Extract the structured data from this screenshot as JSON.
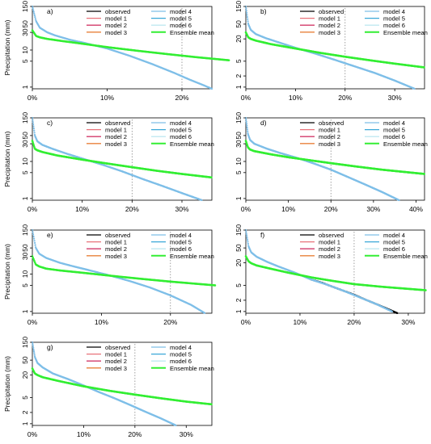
{
  "figure": {
    "legend_labels": [
      "observed",
      "model 1",
      "model 2",
      "model 3",
      "model 4",
      "model 5",
      "model 6",
      "Ensemble mean"
    ],
    "legend_colors": [
      "#000000",
      "#e8727a",
      "#d23a6a",
      "#e8803a",
      "#7fbfe8",
      "#3aa8d8",
      "#bfe8f0",
      "#33ee33"
    ]
  },
  "chart_data": [
    {
      "type": "line",
      "panel_label": "a)",
      "ylabel": "Precipitation (mm)",
      "xlabel": "",
      "x_unit": "% of days",
      "y_scale": "log",
      "xlim": [
        0,
        24
      ],
      "ylim": [
        0.9,
        150
      ],
      "x_ticks": [
        0,
        10,
        20
      ],
      "x_tick_labels": [
        "0%",
        "10%",
        "20%"
      ],
      "y_ticks": [
        1,
        5,
        10,
        30,
        50,
        150
      ],
      "y_tick_labels": [
        "1",
        "5",
        "10",
        "30",
        "50",
        "150"
      ],
      "threshold_x": 20,
      "legend_position": "top-right",
      "grid": false,
      "series": [
        {
          "name": "observed",
          "color": "#000000",
          "x": [],
          "y": []
        },
        {
          "name": "model 4",
          "color": "#7fbfe8",
          "x": [
            0,
            0.5,
            1,
            2,
            3,
            5,
            7,
            10,
            13,
            16,
            19,
            21,
            23,
            24
          ],
          "y": [
            150,
            60,
            40,
            30,
            25,
            19,
            15.5,
            11,
            7,
            4.2,
            2.4,
            1.6,
            1.1,
            0.9
          ]
        },
        {
          "name": "Ensemble mean",
          "color": "#33ee33",
          "x": [
            0,
            0.5,
            1,
            2,
            4,
            6,
            10,
            14,
            18,
            22,
            26.3
          ],
          "y": [
            34,
            24,
            22,
            20,
            17.5,
            15.5,
            12,
            9.6,
            7.8,
            6.4,
            5.3
          ]
        }
      ]
    },
    {
      "type": "line",
      "panel_label": "b)",
      "ylabel": "",
      "xlabel": "",
      "x_unit": "% of days",
      "y_scale": "log",
      "xlim": [
        0,
        36
      ],
      "ylim": [
        0.9,
        150
      ],
      "x_ticks": [
        0,
        10,
        20,
        30
      ],
      "x_tick_labels": [
        "0%",
        "10%",
        "20%",
        "30%"
      ],
      "y_ticks": [
        1,
        2,
        5,
        20,
        50,
        150
      ],
      "y_tick_labels": [
        "1",
        "2",
        "5",
        "20",
        "50",
        "150"
      ],
      "threshold_x": 20,
      "legend_position": "top-right",
      "grid": false,
      "series": [
        {
          "name": "observed",
          "color": "#000000",
          "x": [],
          "y": []
        },
        {
          "name": "model 4",
          "color": "#7fbfe8",
          "x": [
            0,
            0.5,
            1,
            2,
            4,
            7,
            10,
            14,
            18,
            22,
            26,
            30,
            34
          ],
          "y": [
            150,
            50,
            35,
            27,
            21,
            15.5,
            11.5,
            8,
            5.4,
            3.6,
            2.4,
            1.5,
            0.9
          ]
        },
        {
          "name": "Ensemble mean",
          "color": "#33ee33",
          "x": [
            0,
            0.5,
            1,
            2,
            5,
            10,
            15,
            20,
            25,
            30,
            36
          ],
          "y": [
            30,
            22,
            20,
            18,
            14.5,
            11,
            8.4,
            6.6,
            5.3,
            4.3,
            3.4
          ]
        }
      ]
    },
    {
      "type": "line",
      "panel_label": "c)",
      "ylabel": "Precipitation (mm)",
      "xlabel": "",
      "x_unit": "% of days",
      "y_scale": "log",
      "xlim": [
        0,
        36
      ],
      "ylim": [
        0.9,
        150
      ],
      "x_ticks": [
        0,
        10,
        20,
        30
      ],
      "x_tick_labels": [
        "0%",
        "10%",
        "20%",
        "30%"
      ],
      "y_ticks": [
        1,
        5,
        10,
        30,
        50,
        150
      ],
      "y_tick_labels": [
        "1",
        "5",
        "10",
        "30",
        "50",
        "150"
      ],
      "threshold_x": 20,
      "legend_position": "top-right",
      "grid": false,
      "series": [
        {
          "name": "observed",
          "color": "#000000",
          "x": [],
          "y": []
        },
        {
          "name": "model 4",
          "color": "#7fbfe8",
          "x": [
            0,
            0.5,
            1,
            2,
            4,
            7,
            10,
            14,
            18,
            22,
            26,
            30,
            34
          ],
          "y": [
            150,
            50,
            35,
            28,
            22,
            16,
            12,
            8.2,
            5.4,
            3.4,
            2.2,
            1.4,
            0.9
          ]
        },
        {
          "name": "Ensemble mean",
          "color": "#33ee33",
          "x": [
            0,
            0.5,
            1,
            2,
            5,
            10,
            15,
            20,
            25,
            30,
            36
          ],
          "y": [
            36,
            22,
            20,
            18,
            14.5,
            11.2,
            8.8,
            7,
            5.6,
            4.6,
            3.7
          ]
        }
      ]
    },
    {
      "type": "line",
      "panel_label": "d)",
      "ylabel": "",
      "xlabel": "",
      "x_unit": "% of days",
      "y_scale": "log",
      "xlim": [
        0,
        42
      ],
      "ylim": [
        0.9,
        150
      ],
      "x_ticks": [
        0,
        10,
        20,
        30,
        40
      ],
      "x_tick_labels": [
        "0%",
        "10%",
        "20%",
        "30%",
        "40%"
      ],
      "y_ticks": [
        1,
        5,
        10,
        30,
        50,
        150
      ],
      "y_tick_labels": [
        "1",
        "5",
        "10",
        "30",
        "50",
        "150"
      ],
      "threshold_x": 20,
      "legend_position": "top-right",
      "grid": false,
      "series": [
        {
          "name": "observed",
          "color": "#000000",
          "x": [],
          "y": []
        },
        {
          "name": "model 4",
          "color": "#7fbfe8",
          "x": [
            0,
            0.5,
            1,
            2,
            5,
            8,
            12,
            16,
            20,
            24,
            28,
            32,
            36
          ],
          "y": [
            150,
            55,
            38,
            30,
            22,
            17,
            12.5,
            8.8,
            6,
            3.8,
            2.4,
            1.5,
            0.9
          ]
        },
        {
          "name": "Ensemble mean",
          "color": "#33ee33",
          "x": [
            0,
            0.5,
            1,
            2,
            6,
            10,
            15,
            20,
            26,
            32,
            42
          ],
          "y": [
            36,
            24,
            21,
            19,
            15.5,
            13,
            10.8,
            9,
            7.3,
            6,
            4.6
          ]
        }
      ]
    },
    {
      "type": "line",
      "panel_label": "e)",
      "ylabel": "Precipitation (mm)",
      "xlabel": "",
      "x_unit": "% of days",
      "y_scale": "log",
      "xlim": [
        0,
        26
      ],
      "ylim": [
        0.9,
        150
      ],
      "x_ticks": [
        0,
        10,
        20
      ],
      "x_tick_labels": [
        "0%",
        "10%",
        "20%"
      ],
      "y_ticks": [
        1,
        5,
        10,
        30,
        50,
        150
      ],
      "y_tick_labels": [
        "1",
        "5",
        "10",
        "30",
        "50",
        "150"
      ],
      "threshold_x": 20,
      "legend_position": "top-right",
      "grid": false,
      "series": [
        {
          "name": "observed",
          "color": "#000000",
          "x": [],
          "y": []
        },
        {
          "name": "model 4",
          "color": "#7fbfe8",
          "x": [
            0,
            0.5,
            1,
            2,
            4,
            6,
            8,
            11,
            14,
            17,
            20,
            23,
            25
          ],
          "y": [
            150,
            50,
            35,
            27,
            20,
            16,
            13,
            9.4,
            6.6,
            4.4,
            2.7,
            1.5,
            0.9
          ]
        },
        {
          "name": "Ensemble mean",
          "color": "#33ee33",
          "x": [
            0,
            0.5,
            1,
            2,
            4,
            7,
            10,
            13,
            16,
            20,
            26.5
          ],
          "y": [
            30,
            18,
            16,
            14,
            12.5,
            11,
            9.6,
            8.4,
            7.4,
            6.3,
            5
          ]
        }
      ]
    },
    {
      "type": "line",
      "panel_label": "f)",
      "ylabel": "",
      "xlabel": "",
      "x_unit": "% of days",
      "y_scale": "log",
      "xlim": [
        0,
        33
      ],
      "ylim": [
        0.9,
        150
      ],
      "x_ticks": [
        0,
        10,
        20,
        30
      ],
      "x_tick_labels": [
        "0%",
        "10%",
        "20%",
        "30%"
      ],
      "y_ticks": [
        1,
        2,
        5,
        20,
        50,
        150
      ],
      "y_tick_labels": [
        "1",
        "2",
        "5",
        "20",
        "50",
        "150"
      ],
      "threshold_x": 20,
      "legend_position": "top-right",
      "grid": false,
      "series": [
        {
          "name": "observed",
          "color": "#000000",
          "x": [
            12,
            14,
            16,
            18,
            20,
            22,
            24,
            26,
            28
          ],
          "y": [
            7.2,
            5.9,
            4.6,
            3.6,
            2.8,
            2.1,
            1.6,
            1.2,
            0.9
          ]
        },
        {
          "name": "model 4",
          "color": "#7fbfe8",
          "x": [
            0,
            0.5,
            1,
            2,
            4,
            6,
            9,
            12,
            15,
            18,
            21,
            24,
            27
          ],
          "y": [
            150,
            55,
            38,
            29,
            21,
            16,
            11,
            7.2,
            5.2,
            3.6,
            2.4,
            1.6,
            1
          ]
        },
        {
          "name": "Ensemble mean",
          "color": "#33ee33",
          "x": [
            0,
            0.5,
            1,
            2,
            5,
            8,
            12,
            16,
            20,
            25,
            33.3
          ],
          "y": [
            30,
            22,
            19.5,
            17,
            13.5,
            10.8,
            8.2,
            6.6,
            5.4,
            4.6,
            3.7
          ]
        }
      ]
    },
    {
      "type": "line",
      "panel_label": "g)",
      "ylabel": "Precipitation (mm)",
      "xlabel": "",
      "x_unit": "% of days",
      "y_scale": "log",
      "xlim": [
        0,
        35
      ],
      "ylim": [
        0.9,
        150
      ],
      "x_ticks": [
        0,
        10,
        20,
        30
      ],
      "x_tick_labels": [
        "0%",
        "10%",
        "20%",
        "30%"
      ],
      "y_ticks": [
        1,
        2,
        5,
        20,
        50,
        150
      ],
      "y_tick_labels": [
        "1",
        "2",
        "5",
        "20",
        "50",
        "150"
      ],
      "threshold_x": 20,
      "legend_position": "top-right",
      "grid": false,
      "series": [
        {
          "name": "observed",
          "color": "#000000",
          "x": [],
          "y": []
        },
        {
          "name": "model 4",
          "color": "#7fbfe8",
          "x": [
            0,
            0.5,
            1,
            2,
            4,
            7,
            10,
            13,
            16,
            19,
            22,
            25,
            28
          ],
          "y": [
            150,
            60,
            42,
            32,
            22,
            15.5,
            10.5,
            7,
            4.8,
            3.2,
            2.1,
            1.4,
            0.9
          ]
        },
        {
          "name": "Ensemble mean",
          "color": "#33ee33",
          "x": [
            0,
            0.5,
            1,
            2,
            5,
            10,
            15,
            20,
            25,
            30,
            35
          ],
          "y": [
            30,
            22,
            20,
            17.5,
            14,
            10,
            7.6,
            6,
            4.8,
            3.9,
            3.3
          ]
        }
      ]
    }
  ]
}
